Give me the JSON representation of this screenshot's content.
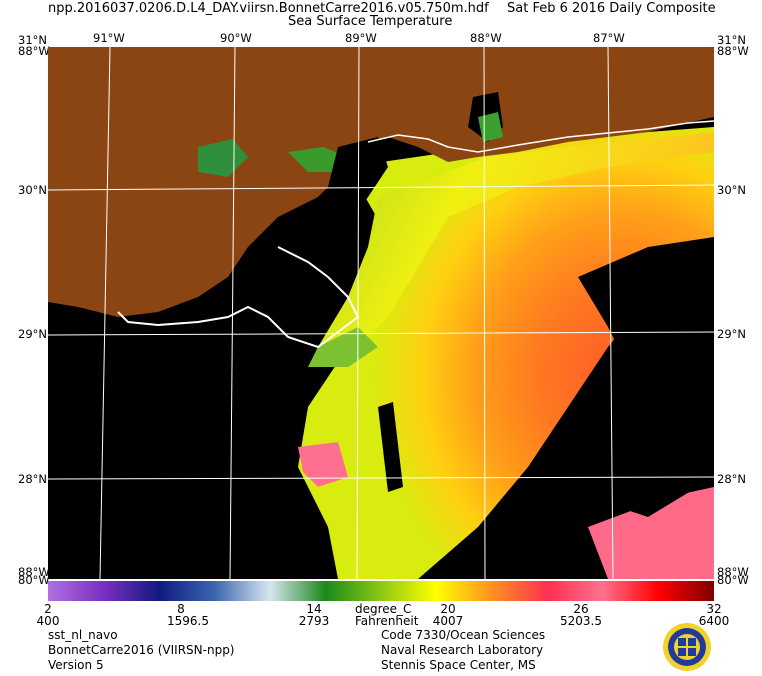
{
  "header": {
    "filename": "npp.2016037.0206.D.L4_DAY.viirsn.BonnetCarre2016.v05.750m.hdf",
    "date": "Sat Feb  6 2016 Daily Composite",
    "product": "Sea Surface Temperature"
  },
  "map": {
    "lon_labels": [
      "91°W",
      "90°W",
      "89°W",
      "88°W",
      "87°W"
    ],
    "lat_labels": [
      "30°N",
      "29°N",
      "28°N"
    ],
    "corner_top_left_lat": "31°N",
    "corner_top_right_lat": "31°N",
    "corner_top_left_lon": "88°W",
    "corner_top_right_lon": "88°W",
    "corner_bottom_left_lat": "88°W",
    "corner_bottom_right_lat": "88°W",
    "corner_bottom_left_lon": "80°W",
    "corner_bottom_right_lon": "80°W",
    "colors": {
      "land": "#8B4513",
      "no_data": "#000000",
      "grid": "#ffffff"
    }
  },
  "colorbar": {
    "celsius_ticks": [
      "2",
      "8",
      "14",
      "20",
      "26",
      "32"
    ],
    "fahrenheit_ticks": [
      "400",
      "1596.5",
      "2793",
      "4007",
      "5203.5",
      "6400"
    ],
    "celsius_unit": "degree_C",
    "fahrenheit_unit": "Fahrenheit",
    "range": [
      2,
      32
    ],
    "stops": [
      "#b070e0",
      "#7a30c0",
      "#101a80",
      "#3c66b0",
      "#d8e4f0",
      "#1a8a1a",
      "#8ec814",
      "#ffff00",
      "#ff9020",
      "#ff3050",
      "#ff7090",
      "#ff0000",
      "#800000"
    ]
  },
  "footer": {
    "left_line1": "sst_nl_navo",
    "left_line2": "BonnetCarre2016 (VIIRSN-npp)",
    "left_line3": "Version 5",
    "center_line1": "Code 7330/Ocean Sciences",
    "center_line2": "Naval Research Laboratory",
    "center_line3": "Stennis Space Center, MS"
  }
}
